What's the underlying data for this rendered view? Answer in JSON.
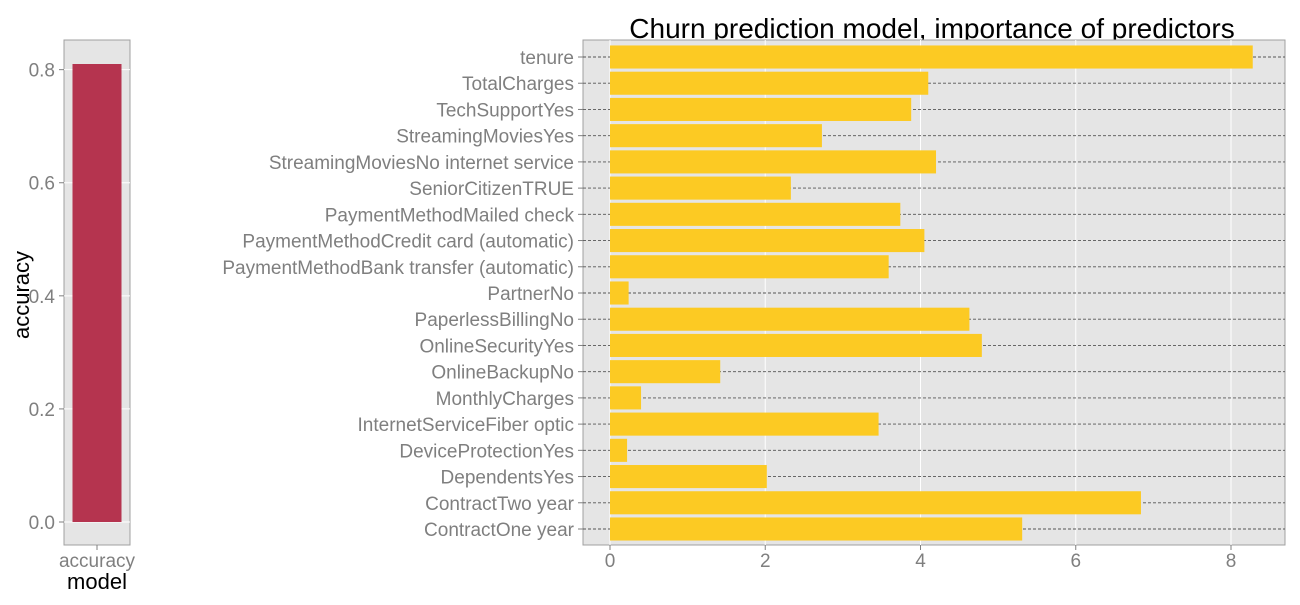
{
  "chart_data": [
    {
      "type": "bar",
      "orientation": "vertical",
      "categories": [
        "accuracy"
      ],
      "values": [
        0.81
      ],
      "title": "",
      "xlabel": "model",
      "ylabel": "accuracy",
      "ylim": [
        0,
        0.85
      ],
      "yticks": [
        0.0,
        0.2,
        0.4,
        0.6,
        0.8
      ],
      "ytick_labels": [
        "0.0",
        "0.2",
        "0.4",
        "0.6",
        "0.8"
      ],
      "bar_color": "#b5344f",
      "panel_color": "#e5e5e5",
      "grid": true
    },
    {
      "type": "bar",
      "orientation": "horizontal",
      "categories": [
        "tenure",
        "TotalCharges",
        "TechSupportYes",
        "StreamingMoviesYes",
        "StreamingMoviesNo internet service",
        "SeniorCitizenTRUE",
        "PaymentMethodMailed check",
        "PaymentMethodCredit card (automatic)",
        "PaymentMethodBank transfer (automatic)",
        "PartnerNo",
        "PaperlessBillingNo",
        "OnlineSecurityYes",
        "OnlineBackupNo",
        "MonthlyCharges",
        "InternetServiceFiber optic",
        "DeviceProtectionYes",
        "DependentsYes",
        "ContractTwo year",
        "ContractOne year"
      ],
      "values": [
        8.28,
        4.1,
        3.88,
        2.73,
        4.2,
        2.33,
        3.74,
        4.05,
        3.59,
        0.24,
        4.63,
        4.79,
        1.42,
        0.4,
        3.46,
        0.22,
        2.02,
        6.84,
        5.31
      ],
      "title": "Churn prediction model, importance of predictors",
      "xlabel": "",
      "ylabel": "",
      "xlim": [
        -0.35,
        8.7
      ],
      "xticks": [
        0,
        2,
        4,
        6,
        8
      ],
      "xtick_labels": [
        "0",
        "2",
        "4",
        "6",
        "8"
      ],
      "bar_color": "#fcca23",
      "panel_color": "#e5e5e5",
      "grid": true
    }
  ]
}
